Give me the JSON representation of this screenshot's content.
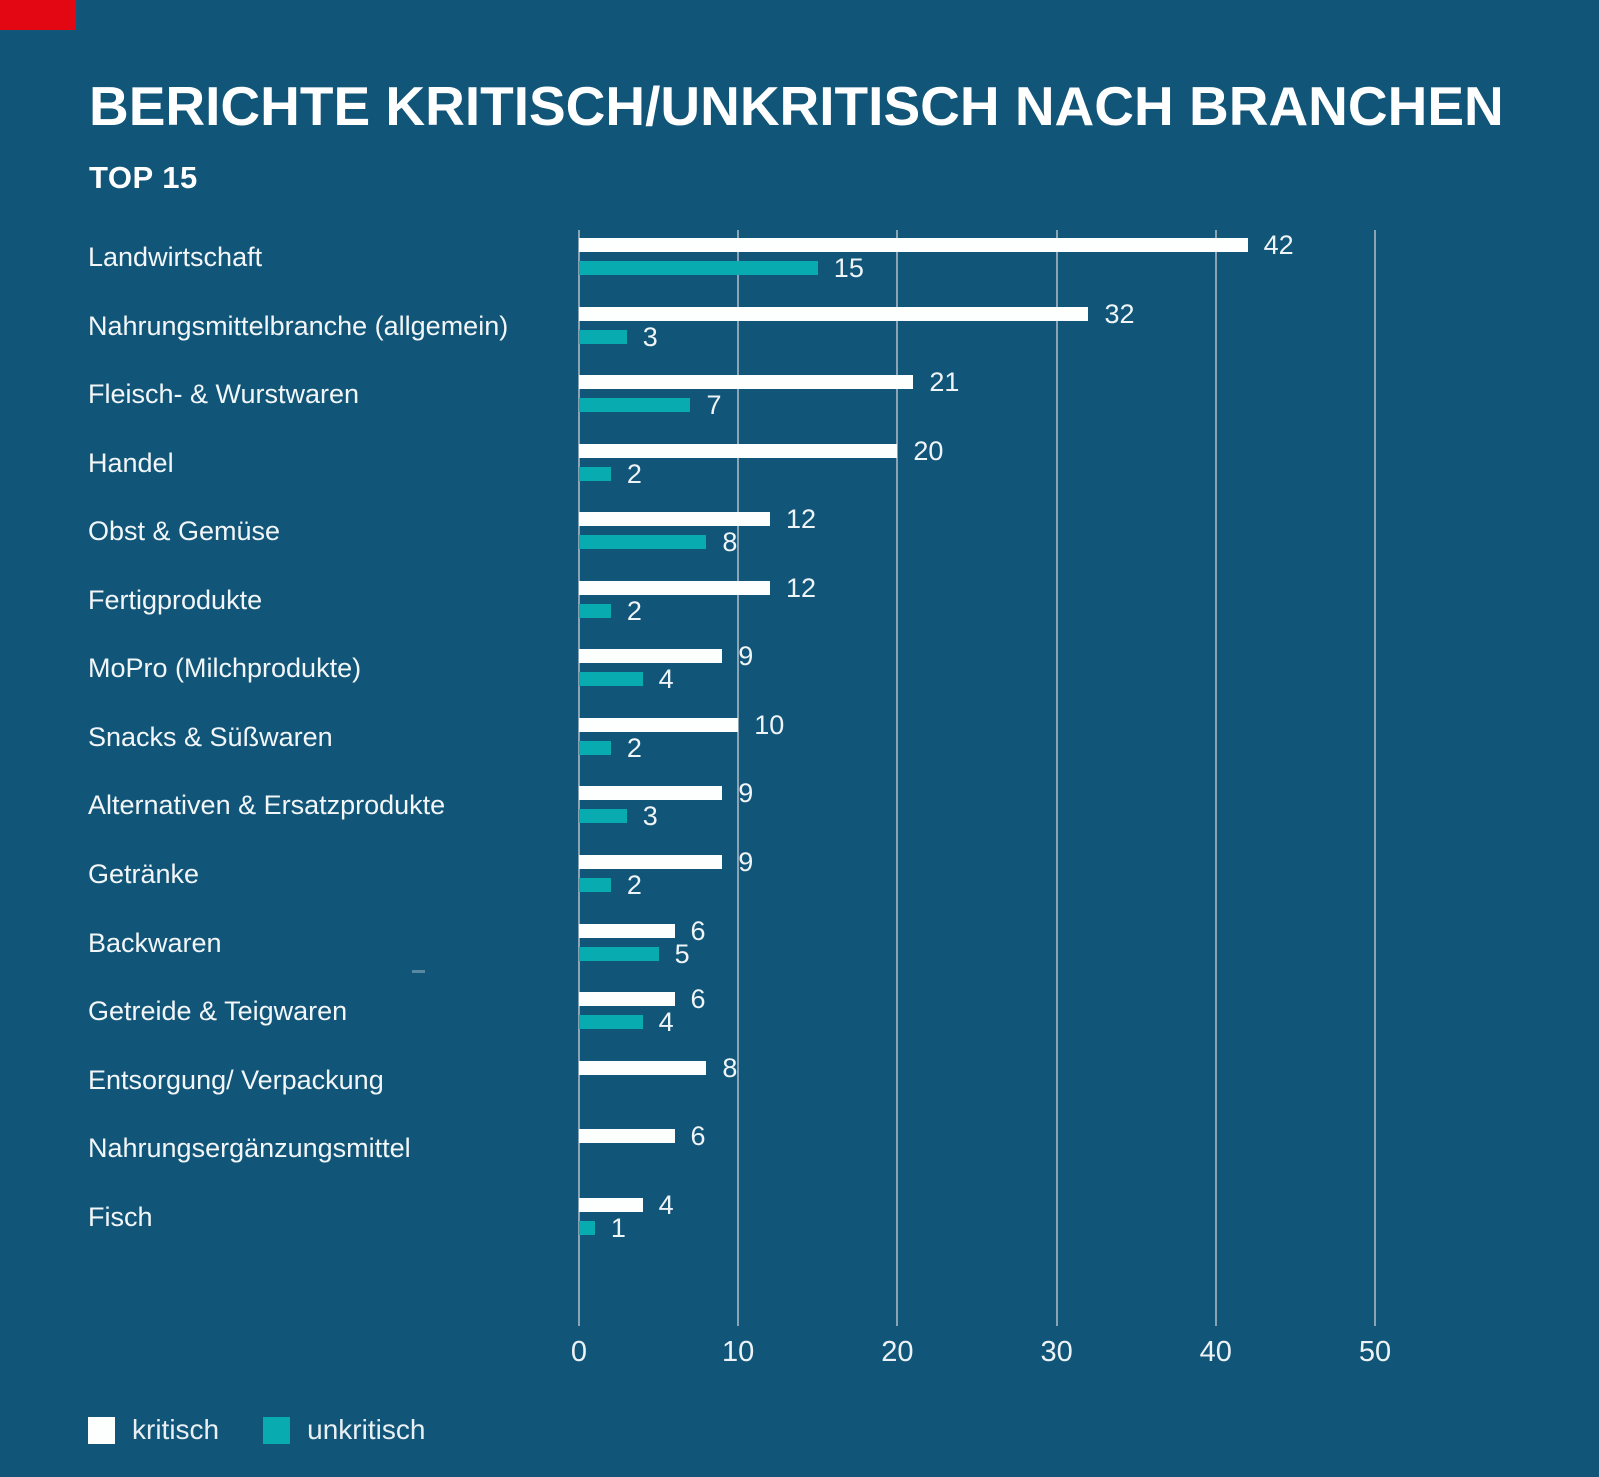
{
  "colors": {
    "background": "#115679",
    "red_flag": "#e30613",
    "bar_kritisch": "#fdfefe",
    "bar_unkritisch": "#08abb0",
    "grid": "#9db1bf"
  },
  "header": {
    "title": "BERICHTE KRITISCH/UNKRITISCH NACH BRANCHEN",
    "subtitle": "TOP 15"
  },
  "legend": {
    "items": [
      {
        "label": "kritisch",
        "color": "#fdfefe"
      },
      {
        "label": "unkritisch",
        "color": "#08abb0"
      }
    ]
  },
  "chart_data": {
    "type": "bar",
    "orientation": "horizontal",
    "title": "BERICHTE KRITISCH/UNKRITISCH NACH BRANCHEN",
    "subtitle": "TOP 15",
    "xlabel": "",
    "ylabel": "",
    "xlim": [
      0,
      50
    ],
    "x_ticks": [
      0,
      10,
      20,
      30,
      40,
      50
    ],
    "grid": "vertical",
    "legend_position": "bottom-left",
    "categories": [
      "Landwirtschaft",
      "Nahrungsmittelbranche (allgemein)",
      "Fleisch- & Wurstwaren",
      "Handel",
      "Obst & Gemüse",
      "Fertigprodukte",
      "MoPro (Milchprodukte)",
      "Snacks & Süßwaren",
      "Alternativen & Ersatzprodukte",
      "Getränke",
      "Backwaren",
      "Getreide & Teigwaren",
      "Entsorgung/ Verpackung",
      "Nahrungsergänzungsmittel",
      "Fisch"
    ],
    "series": [
      {
        "name": "kritisch",
        "color": "#fdfefe",
        "values": [
          42,
          32,
          21,
          20,
          12,
          12,
          9,
          10,
          9,
          9,
          6,
          6,
          8,
          6,
          4
        ]
      },
      {
        "name": "unkritisch",
        "color": "#08abb0",
        "values": [
          15,
          3,
          7,
          2,
          8,
          2,
          4,
          2,
          3,
          2,
          5,
          4,
          null,
          null,
          1
        ]
      }
    ]
  }
}
